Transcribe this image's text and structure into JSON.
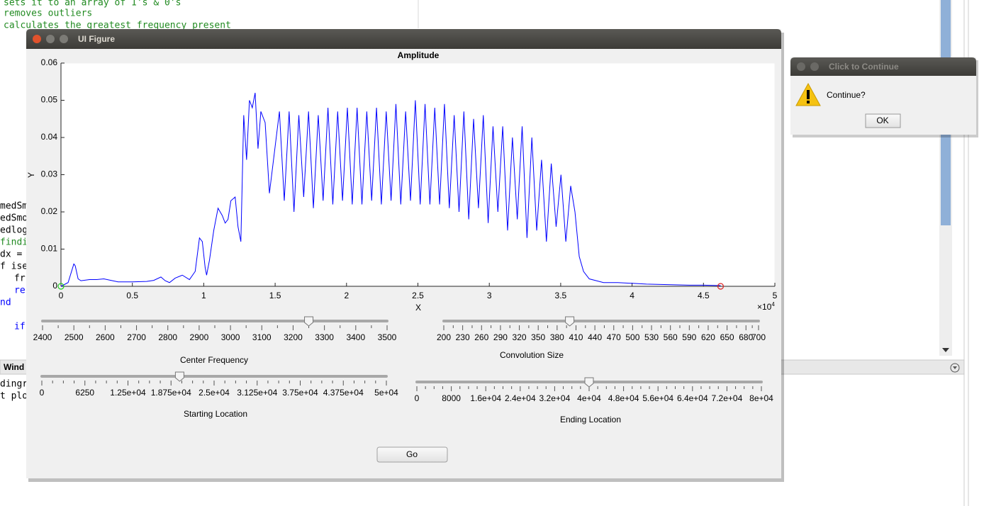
{
  "background": {
    "editor_lines": [
      "sets it to an array of 1's & 0's",
      "removes outliers",
      "calculates the greatest frequency present"
    ],
    "code_fragments": [
      "medSm",
      "edSmo",
      "edlog",
      "findi",
      "dx =",
      "f ise",
      "fr",
      "re",
      "nd",
      "if"
    ],
    "command_window_title": "Wind",
    "command_fragments": [
      "dingr",
      "t plo"
    ]
  },
  "window": {
    "title": "UI Figure"
  },
  "chart_data": {
    "type": "line",
    "title": "Amplitude",
    "x_label": "X",
    "y_label": "Y",
    "x_multiplier": {
      "base": "×10",
      "exponent": "4"
    },
    "xlim": [
      0,
      50000
    ],
    "ylim": [
      0,
      0.06
    ],
    "xticks": [
      0,
      {
        "value": 5000,
        "label": "0.5"
      },
      {
        "value": 10000,
        "label": "1"
      },
      {
        "value": 15000,
        "label": "1.5"
      },
      {
        "value": 20000,
        "label": "2"
      },
      {
        "value": 25000,
        "label": "2.5"
      },
      {
        "value": 30000,
        "label": "3"
      },
      {
        "value": 35000,
        "label": "3.5"
      },
      {
        "value": 40000,
        "label": "4"
      },
      {
        "value": 45000,
        "label": "4.5"
      },
      {
        "value": 50000,
        "label": "5"
      }
    ],
    "yticks": [
      0,
      0.01,
      0.02,
      0.03,
      0.04,
      0.05,
      0.06
    ],
    "x": [
      0,
      500,
      900,
      1000,
      1200,
      1400,
      2000,
      2500,
      3000,
      3500,
      4000,
      5000,
      6000,
      6500,
      7000,
      7300,
      7600,
      8000,
      8500,
      9000,
      9400,
      9700,
      9900,
      10100,
      10200,
      10400,
      10700,
      11000,
      11300,
      11500,
      11700,
      11900,
      12200,
      12400,
      12600,
      12800,
      13000,
      13200,
      13400,
      13600,
      13800,
      14000,
      14300,
      14600,
      15300,
      15640,
      15980,
      16320,
      16660,
      17000,
      17340,
      17680,
      18020,
      18360,
      18700,
      19040,
      19380,
      19720,
      20060,
      20400,
      20740,
      21080,
      21420,
      21760,
      22100,
      22440,
      22780,
      23120,
      23460,
      23800,
      24140,
      24480,
      24820,
      25160,
      25500,
      25840,
      26180,
      26520,
      26860,
      27200,
      27540,
      27880,
      28220,
      28560,
      28900,
      29240,
      29580,
      29920,
      30260,
      30600,
      30940,
      31280,
      31620,
      31960,
      32300,
      32640,
      32980,
      33320,
      33660,
      34000,
      34340,
      34680,
      35020,
      35360,
      35700,
      36000,
      36300,
      36600,
      37000,
      37500,
      38000,
      39000,
      40000,
      41000,
      42000,
      43000,
      44000,
      45000,
      46200
    ],
    "series": [
      {
        "color": "#0000ff",
        "values": [
          0,
          0.001,
          0.006,
          0.0055,
          0.002,
          0.0015,
          0.0018,
          0.0018,
          0.002,
          0.0016,
          0.0012,
          0.0012,
          0.0013,
          0.0016,
          0.0025,
          0.0015,
          0.001,
          0.0022,
          0.003,
          0.0018,
          0.004,
          0.013,
          0.012,
          0.005,
          0.003,
          0.007,
          0.015,
          0.021,
          0.019,
          0.017,
          0.018,
          0.023,
          0.024,
          0.016,
          0.012,
          0.046,
          0.034,
          0.05,
          0.048,
          0.052,
          0.037,
          0.047,
          0.044,
          0.025,
          0.047,
          0.023,
          0.047,
          0.02,
          0.046,
          0.024,
          0.047,
          0.021,
          0.046,
          0.023,
          0.048,
          0.022,
          0.047,
          0.023,
          0.048,
          0.022,
          0.048,
          0.022,
          0.047,
          0.023,
          0.048,
          0.022,
          0.047,
          0.023,
          0.049,
          0.022,
          0.047,
          0.023,
          0.05,
          0.022,
          0.049,
          0.022,
          0.048,
          0.022,
          0.049,
          0.021,
          0.046,
          0.02,
          0.047,
          0.018,
          0.045,
          0.021,
          0.046,
          0.017,
          0.043,
          0.02,
          0.043,
          0.015,
          0.04,
          0.018,
          0.043,
          0.013,
          0.04,
          0.015,
          0.034,
          0.012,
          0.033,
          0.016,
          0.03,
          0.012,
          0.027,
          0.02,
          0.008,
          0.004,
          0.002,
          0.0015,
          0.001,
          0.001,
          0.0008,
          0.0006,
          0.0005,
          0.0004,
          0.0003,
          0.0003,
          0.0002
        ]
      }
    ],
    "markers": [
      {
        "x": 0,
        "y": 0,
        "color": "#22cc22"
      },
      {
        "x": 46200,
        "y": 0,
        "color": "#dd2222"
      }
    ]
  },
  "sliders": [
    {
      "label": "Center Frequency",
      "limits": [
        2400,
        3500
      ],
      "value": 3250,
      "ticks": [
        2400,
        2500,
        2600,
        2700,
        2800,
        2900,
        3000,
        3100,
        3200,
        3300,
        3400,
        3500
      ]
    },
    {
      "label": "Convolution Size",
      "limits": [
        200,
        700
      ],
      "value": 400,
      "ticks": [
        200,
        230,
        260,
        290,
        320,
        350,
        380,
        410,
        440,
        470,
        500,
        530,
        560,
        590,
        620,
        650,
        680,
        700
      ]
    },
    {
      "label": "Starting Location",
      "limits": [
        0,
        50000
      ],
      "value": 20000,
      "ticks": [
        0,
        6250,
        {
          "value": 12500,
          "label": "1.25e+04"
        },
        {
          "value": 18750,
          "label": "1.875e+04"
        },
        {
          "value": 25000,
          "label": "2.5e+04"
        },
        {
          "value": 31250,
          "label": "3.125e+04"
        },
        {
          "value": 37500,
          "label": "3.75e+04"
        },
        {
          "value": 43750,
          "label": "4.375e+04"
        },
        {
          "value": 50000,
          "label": "5e+04"
        }
      ]
    },
    {
      "label": "Ending Location",
      "limits": [
        0,
        80000
      ],
      "value": 40000,
      "ticks": [
        0,
        8000,
        {
          "value": 16000,
          "label": "1.6e+04"
        },
        {
          "value": 24000,
          "label": "2.4e+04"
        },
        {
          "value": 32000,
          "label": "3.2e+04"
        },
        {
          "value": 40000,
          "label": "4e+04"
        },
        {
          "value": 48000,
          "label": "4.8e+04"
        },
        {
          "value": 56000,
          "label": "5.6e+04"
        },
        {
          "value": 64000,
          "label": "6.4e+04"
        },
        {
          "value": 72000,
          "label": "7.2e+04"
        },
        {
          "value": 80000,
          "label": "8e+04"
        }
      ]
    }
  ],
  "go_button": "Go",
  "dialog": {
    "title": "Click to Continue",
    "message": "Continue?",
    "button": "OK"
  }
}
